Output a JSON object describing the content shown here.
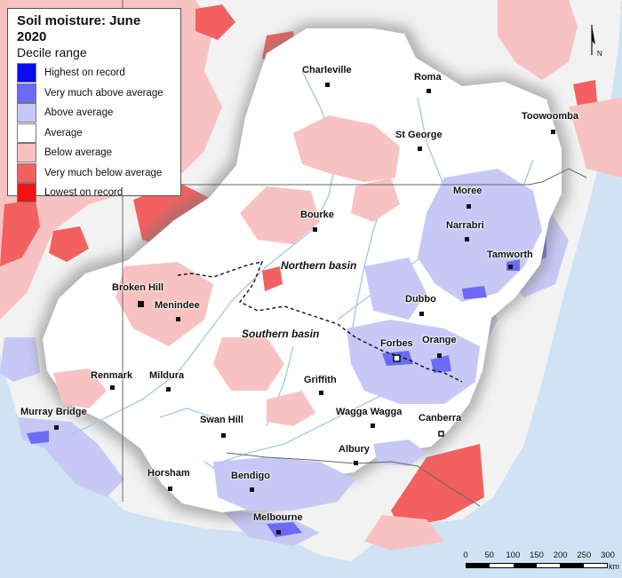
{
  "legend": {
    "title": "Soil moisture: June 2020",
    "subtitle": "Decile range",
    "items": [
      {
        "label": "Highest on record",
        "color": "#0b0bf0"
      },
      {
        "label": "Very much above average",
        "color": "#6b6bf5"
      },
      {
        "label": "Above average",
        "color": "#c8c8f7"
      },
      {
        "label": "Average",
        "color": "#ffffff"
      },
      {
        "label": "Below average",
        "color": "#f9c2c2"
      },
      {
        "label": "Very much below average",
        "color": "#f26060"
      },
      {
        "label": "Lowest on record",
        "color": "#f01515"
      }
    ]
  },
  "towns": {
    "charleville": "Charleville",
    "roma": "Roma",
    "toowoomba": "Toowoomba",
    "st_george": "St George",
    "moree": "Moree",
    "narrabri": "Narrabri",
    "bourke": "Bourke",
    "tamworth": "Tamworth",
    "broken_hill": "Broken Hill",
    "menindee": "Menindee",
    "dubbo": "Dubbo",
    "forbes": "Forbes",
    "orange": "Orange",
    "renmark": "Renmark",
    "mildura": "Mildura",
    "griffith": "Griffith",
    "murray_bridge": "Murray Bridge",
    "swan_hill": "Swan Hill",
    "wagga_wagga": "Wagga Wagga",
    "canberra": "Canberra",
    "albury": "Albury",
    "horsham": "Horsham",
    "bendigo": "Bendigo",
    "melbourne": "Melbourne"
  },
  "basins": {
    "northern": "Northern basin",
    "southern": "Southern basin"
  },
  "north_label": "N",
  "scale": {
    "ticks": [
      "0",
      "50",
      "100",
      "150",
      "200",
      "250",
      "300"
    ],
    "unit": "km"
  },
  "colors": {
    "ocean": "#cfe3f5",
    "land_average": "#ffffff",
    "below": "#f9c2c2",
    "very_below": "#f26060",
    "above": "#c8c8f7",
    "very_above": "#6b6bf5",
    "highest": "#0b0bf0",
    "rivers": "#a9c8e8"
  }
}
